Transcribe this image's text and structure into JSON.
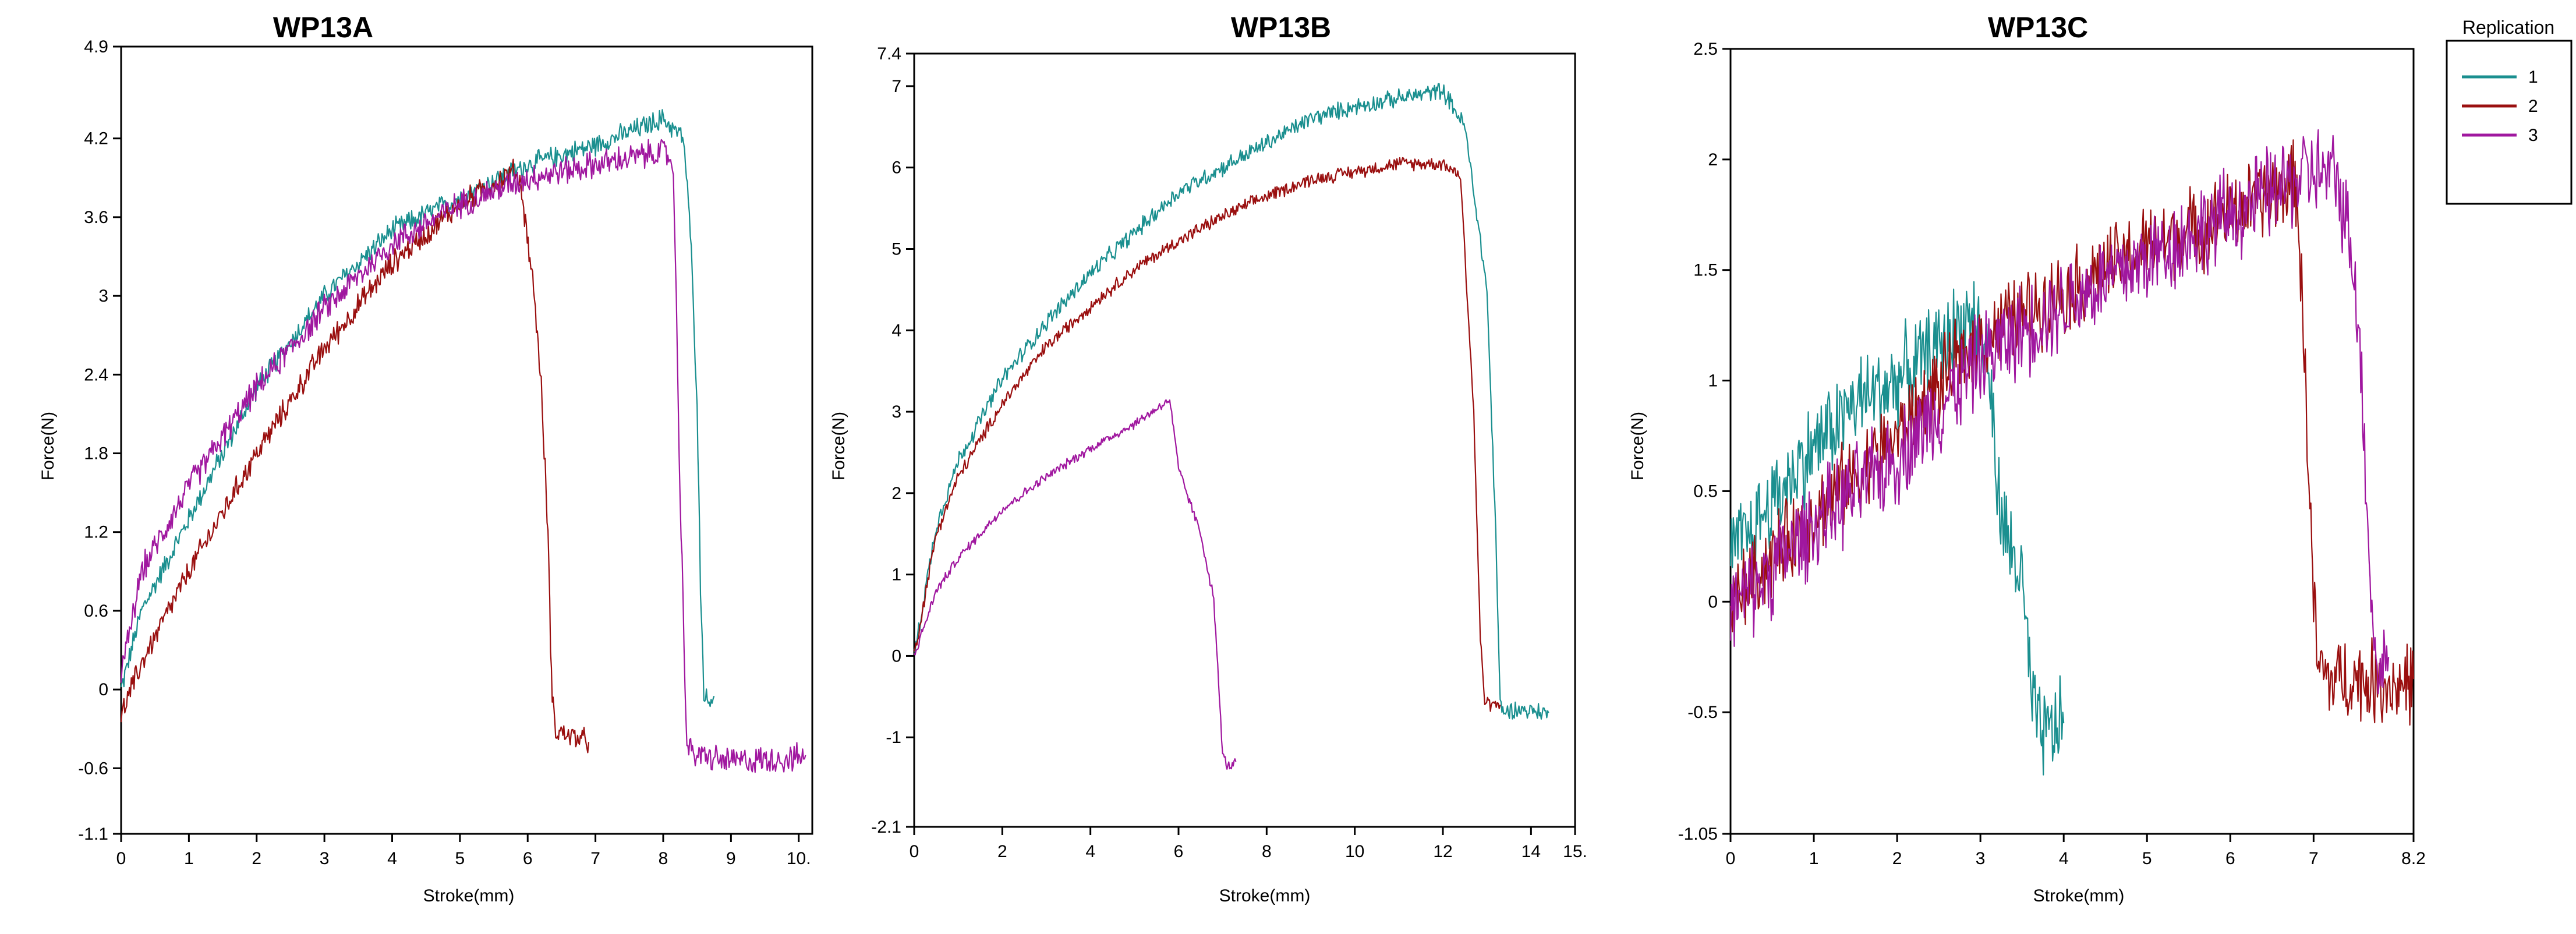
{
  "legend": {
    "title": "Replication",
    "entries": [
      {
        "label": "1",
        "color": "#1a8f8f"
      },
      {
        "label": "2",
        "color": "#9a0f0f"
      },
      {
        "label": "3",
        "color": "#a0179f"
      }
    ]
  },
  "chart_data": [
    {
      "type": "line",
      "title": "WP13A",
      "xlabel": "Stroke(mm)",
      "ylabel": "Force(N)",
      "xlim": [
        0,
        10.2
      ],
      "ylim": [
        -1.1,
        4.9
      ],
      "xticks": [
        0,
        1,
        2,
        3,
        4,
        5,
        6,
        7,
        8,
        9,
        10
      ],
      "xtick_labels": [
        "0",
        "1",
        "2",
        "3",
        "4",
        "5",
        "6",
        "7",
        "8",
        "9",
        "10."
      ],
      "yticks": [
        -1.1,
        -0.6,
        0,
        0.6,
        1.2,
        1.8,
        2.4,
        3,
        3.6,
        4.2,
        4.9
      ],
      "ytick_labels": [
        "-1.1",
        "-0.6",
        "0",
        "0.6",
        "1.2",
        "1.8",
        "2.4",
        "3",
        "3.6",
        "4.2",
        "4.9"
      ],
      "series": [
        {
          "name": "1",
          "noise": 0.07,
          "x": [
            0,
            0.3,
            1,
            2,
            3,
            4,
            5,
            6,
            7,
            8,
            8.3,
            8.4,
            8.5,
            8.55,
            8.6,
            8.65,
            8.75
          ],
          "y": [
            0,
            0.6,
            1.3,
            2.3,
            3.0,
            3.5,
            3.75,
            4.0,
            4.15,
            4.35,
            4.2,
            3.5,
            2.2,
            0.8,
            0.0,
            -0.1,
            -0.05
          ]
        },
        {
          "name": "2",
          "noise": 0.08,
          "x": [
            0,
            0.3,
            1,
            2,
            3,
            4,
            5,
            5.8,
            5.9,
            6.1,
            6.2,
            6.3,
            6.35,
            6.4,
            6.6,
            6.9
          ],
          "y": [
            -0.2,
            0.2,
            0.9,
            1.8,
            2.6,
            3.25,
            3.7,
            3.95,
            3.85,
            3.0,
            2.3,
            1.2,
            0.1,
            -0.3,
            -0.35,
            -0.4
          ]
        },
        {
          "name": "3",
          "noise": 0.09,
          "x": [
            0,
            0.3,
            1,
            2,
            3,
            4,
            5,
            6,
            7,
            8,
            8.15,
            8.25,
            8.35,
            8.5,
            9,
            10,
            10.1
          ],
          "y": [
            0.1,
            0.9,
            1.55,
            2.3,
            2.9,
            3.4,
            3.7,
            3.9,
            4.0,
            4.1,
            4.0,
            1.5,
            -0.45,
            -0.5,
            -0.55,
            -0.52,
            -0.5
          ]
        }
      ]
    },
    {
      "type": "line",
      "title": "WP13B",
      "xlabel": "Stroke(mm)",
      "ylabel": "Force(N)",
      "xlim": [
        0,
        15
      ],
      "ylim": [
        -2.1,
        7.4
      ],
      "xticks": [
        0,
        2,
        4,
        6,
        8,
        10,
        12,
        14,
        15
      ],
      "xtick_labels": [
        "0",
        "2",
        "4",
        "6",
        "8",
        "10",
        "12",
        "14",
        "15."
      ],
      "yticks": [
        -2.1,
        -1,
        0,
        1,
        2,
        3,
        4,
        5,
        6,
        7,
        7.4
      ],
      "ytick_labels": [
        "-2.1",
        "-1",
        "0",
        "1",
        "2",
        "3",
        "4",
        "5",
        "6",
        "7",
        "7.4"
      ],
      "series": [
        {
          "name": "1",
          "noise": 0.09,
          "x": [
            0,
            0.5,
            1,
            2,
            3,
            4,
            5,
            6,
            7,
            8,
            9,
            10,
            11,
            12,
            12.5,
            13,
            13.2,
            13.3,
            13.4,
            13.6,
            14.4
          ],
          "y": [
            0,
            1.6,
            2.4,
            3.4,
            4.1,
            4.7,
            5.2,
            5.7,
            6.0,
            6.3,
            6.6,
            6.75,
            6.85,
            6.95,
            6.5,
            4.5,
            1.5,
            -0.6,
            -0.7,
            -0.65,
            -0.7
          ]
        },
        {
          "name": "2",
          "noise": 0.07,
          "x": [
            0,
            0.5,
            1,
            2,
            3,
            4,
            5,
            6,
            7,
            8,
            9,
            10,
            11,
            12,
            12.4,
            12.7,
            12.85,
            12.95,
            13.1,
            13.3
          ],
          "y": [
            0,
            1.5,
            2.2,
            3.1,
            3.8,
            4.3,
            4.75,
            5.1,
            5.4,
            5.65,
            5.85,
            5.95,
            6.05,
            6.05,
            5.9,
            3.0,
            0.2,
            -0.55,
            -0.6,
            -0.6
          ]
        },
        {
          "name": "3",
          "noise": 0.05,
          "x": [
            0,
            0.5,
            1,
            2,
            3,
            4,
            5,
            5.8,
            6,
            6.5,
            6.8,
            7.0,
            7.1,
            7.2,
            7.3
          ],
          "y": [
            0,
            0.8,
            1.2,
            1.8,
            2.2,
            2.55,
            2.85,
            3.15,
            2.3,
            1.5,
            0.7,
            -1.2,
            -1.35,
            -1.35,
            -1.3
          ]
        }
      ]
    },
    {
      "type": "line",
      "title": "WP13C",
      "xlabel": "Stroke(mm)",
      "ylabel": "Force(N)",
      "xlim": [
        0,
        8.2
      ],
      "ylim": [
        -1.05,
        2.5
      ],
      "xticks": [
        0,
        1,
        2,
        3,
        4,
        5,
        6,
        7,
        8.2
      ],
      "xtick_labels": [
        "0",
        "1",
        "2",
        "3",
        "4",
        "5",
        "6",
        "7",
        "8.2"
      ],
      "yticks": [
        -1.05,
        -0.5,
        0,
        0.5,
        1,
        1.5,
        2,
        2.5
      ],
      "ytick_labels": [
        "-1.05",
        "-0.5",
        "0",
        "0.5",
        "1",
        "1.5",
        "2",
        "2.5"
      ],
      "series": [
        {
          "name": "1",
          "noise": 0.18,
          "x": [
            0,
            0.5,
            1,
            1.5,
            2,
            2.5,
            2.9,
            3.1,
            3.2,
            3.3,
            3.5,
            3.6,
            3.7,
            3.8,
            4.0
          ],
          "y": [
            0.2,
            0.45,
            0.7,
            0.9,
            1.0,
            1.15,
            1.3,
            1.1,
            0.5,
            0.3,
            0.1,
            -0.4,
            -0.6,
            -0.6,
            -0.55
          ]
        },
        {
          "name": "2",
          "noise": 0.16,
          "x": [
            0,
            0.5,
            1,
            2,
            3,
            4,
            5,
            6,
            6.5,
            6.8,
            6.9,
            7.0,
            7.05,
            7.2,
            7.5,
            8.0,
            8.2
          ],
          "y": [
            0.0,
            0.2,
            0.4,
            0.75,
            1.2,
            1.4,
            1.6,
            1.75,
            1.85,
            1.9,
            1.0,
            0.0,
            -0.3,
            -0.35,
            -0.35,
            -0.38,
            -0.35
          ]
        },
        {
          "name": "3",
          "noise": 0.18,
          "x": [
            0,
            0.5,
            1,
            2,
            3,
            4,
            5,
            6,
            7,
            7.3,
            7.5,
            7.6,
            7.7,
            7.75,
            7.8,
            7.9
          ],
          "y": [
            -0.05,
            0.15,
            0.35,
            0.65,
            1.1,
            1.35,
            1.55,
            1.75,
            1.95,
            1.9,
            1.5,
            0.8,
            0.0,
            -0.3,
            -0.3,
            -0.25
          ]
        }
      ]
    }
  ]
}
